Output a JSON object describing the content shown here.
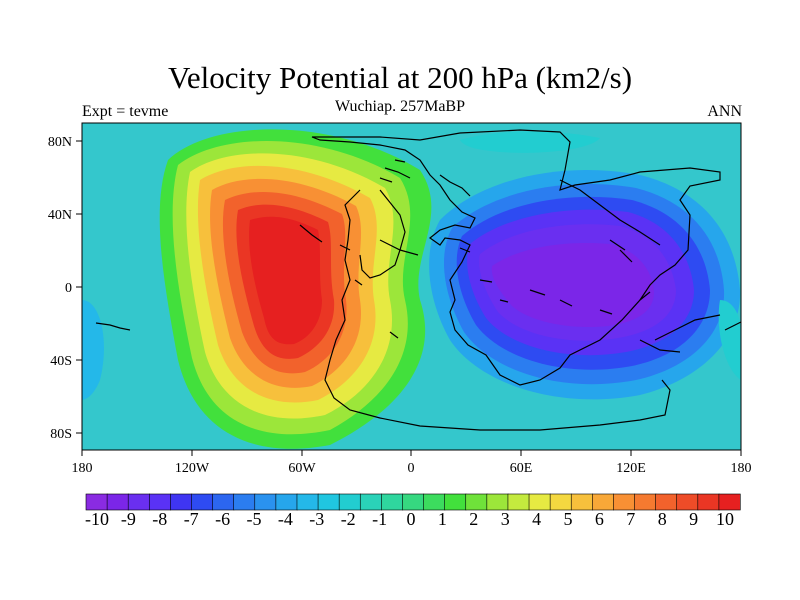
{
  "map": {
    "title": "Velocity Potential at 200 hPa (km2/s)",
    "subtitle": "Wuchiap. 257MaBP",
    "left_label": "Expt = tevme",
    "right_label": "ANN",
    "lon_ticks": [
      "180",
      "120W",
      "60W",
      "0",
      "60E",
      "120E",
      "180"
    ],
    "lat_ticks": [
      "80N",
      "40N",
      "0",
      "40S",
      "80S"
    ],
    "colorbar": {
      "labels": [
        "-10",
        "-9",
        "-8",
        "-7",
        "-6",
        "-5",
        "-4",
        "-3",
        "-2",
        "-1",
        "0",
        "1",
        "2",
        "3",
        "4",
        "5",
        "6",
        "7",
        "8",
        "9",
        "10"
      ],
      "colors": [
        "#8a2be2",
        "#7b26e8",
        "#6a2ff0",
        "#5a32f5",
        "#3f35f2",
        "#2e4bf2",
        "#2c66f0",
        "#2b7df0",
        "#2a92ef",
        "#26a6ec",
        "#24b8e9",
        "#20c6e0",
        "#22cdd0",
        "#2ad2b8",
        "#2fd69e",
        "#36d880",
        "#3cdc5e",
        "#42e03c",
        "#6fe23a",
        "#9ce63a",
        "#c4ea3e",
        "#e6ea42",
        "#f4d840",
        "#f7c03c",
        "#f8a838",
        "#f89034",
        "#f57a30",
        "#f2622c",
        "#ee4c28",
        "#ea3624",
        "#e62020"
      ]
    },
    "field_background": "#34c7cc"
  }
}
